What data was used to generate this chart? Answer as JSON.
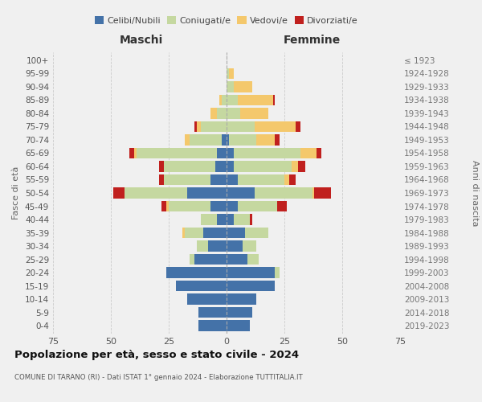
{
  "age_groups": [
    "0-4",
    "5-9",
    "10-14",
    "15-19",
    "20-24",
    "25-29",
    "30-34",
    "35-39",
    "40-44",
    "45-49",
    "50-54",
    "55-59",
    "60-64",
    "65-69",
    "70-74",
    "75-79",
    "80-84",
    "85-89",
    "90-94",
    "95-99",
    "100+"
  ],
  "birth_years": [
    "2019-2023",
    "2014-2018",
    "2009-2013",
    "2004-2008",
    "1999-2003",
    "1994-1998",
    "1989-1993",
    "1984-1988",
    "1979-1983",
    "1974-1978",
    "1969-1973",
    "1964-1968",
    "1959-1963",
    "1954-1958",
    "1949-1953",
    "1944-1948",
    "1939-1943",
    "1934-1938",
    "1929-1933",
    "1924-1928",
    "≤ 1923"
  ],
  "male": {
    "celibi": [
      12,
      12,
      17,
      22,
      26,
      14,
      8,
      10,
      4,
      7,
      17,
      7,
      5,
      4,
      2,
      0,
      0,
      0,
      0,
      0,
      0
    ],
    "coniugati": [
      0,
      0,
      0,
      0,
      0,
      2,
      5,
      8,
      7,
      18,
      27,
      20,
      22,
      35,
      14,
      11,
      4,
      2,
      0,
      0,
      0
    ],
    "vedovi": [
      0,
      0,
      0,
      0,
      0,
      0,
      0,
      1,
      0,
      1,
      0,
      0,
      0,
      1,
      2,
      2,
      3,
      1,
      0,
      0,
      0
    ],
    "divorziati": [
      0,
      0,
      0,
      0,
      0,
      0,
      0,
      0,
      0,
      2,
      5,
      2,
      2,
      2,
      0,
      1,
      0,
      0,
      0,
      0,
      0
    ]
  },
  "female": {
    "nubili": [
      10,
      11,
      13,
      21,
      21,
      9,
      7,
      8,
      3,
      5,
      12,
      5,
      3,
      3,
      1,
      0,
      0,
      0,
      0,
      0,
      0
    ],
    "coniugate": [
      0,
      0,
      0,
      0,
      2,
      5,
      6,
      10,
      7,
      17,
      25,
      20,
      25,
      29,
      12,
      12,
      6,
      5,
      3,
      1,
      0
    ],
    "vedove": [
      0,
      0,
      0,
      0,
      0,
      0,
      0,
      0,
      0,
      0,
      1,
      2,
      3,
      7,
      8,
      18,
      12,
      15,
      8,
      2,
      0
    ],
    "divorziate": [
      0,
      0,
      0,
      0,
      0,
      0,
      0,
      0,
      1,
      4,
      7,
      3,
      3,
      2,
      2,
      2,
      0,
      1,
      0,
      0,
      0
    ]
  },
  "colors": {
    "celibi": "#4472a8",
    "coniugati": "#c5d8a0",
    "vedovi": "#f4c86c",
    "divorziati": "#c0201e"
  },
  "legend_labels": [
    "Celibi/Nubili",
    "Coniugati/e",
    "Vedovi/e",
    "Divorziati/e"
  ],
  "title": "Popolazione per età, sesso e stato civile - 2024",
  "subtitle": "COMUNE DI TARANO (RI) - Dati ISTAT 1° gennaio 2024 - Elaborazione TUTTITALIA.IT",
  "xlabel_left": "Maschi",
  "xlabel_right": "Femmine",
  "ylabel_left": "Fasce di età",
  "ylabel_right": "Anni di nascita",
  "xlim": 75,
  "background_color": "#f0f0f0"
}
